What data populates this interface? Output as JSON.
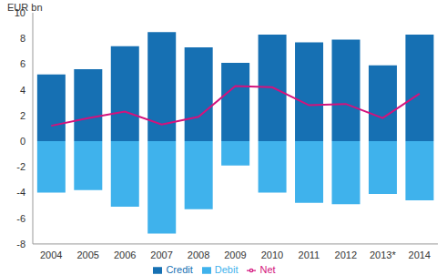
{
  "chart_data": {
    "type": "bar",
    "y_label": "EUR bn",
    "categories": [
      "2004",
      "2005",
      "2006",
      "2007",
      "2008",
      "2009",
      "2010",
      "2011",
      "2012",
      "2013*",
      "2014"
    ],
    "series": [
      {
        "name": "Credit",
        "type": "bar",
        "color": "#1670b3",
        "values": [
          5.2,
          5.6,
          7.4,
          8.5,
          7.3,
          6.1,
          8.3,
          7.7,
          7.9,
          5.9,
          8.3
        ]
      },
      {
        "name": "Debit",
        "type": "bar",
        "color": "#3fb2ec",
        "values": [
          -4.0,
          -3.8,
          -5.1,
          -7.2,
          -5.3,
          -1.9,
          -4.0,
          -4.8,
          -4.9,
          -4.1,
          -4.6
        ]
      },
      {
        "name": "Net",
        "type": "line",
        "color": "#d4127c",
        "values": [
          1.2,
          1.8,
          2.3,
          1.3,
          1.9,
          4.3,
          4.2,
          2.8,
          2.9,
          1.8,
          3.7
        ]
      }
    ],
    "stacked": true,
    "ylim": [
      -8,
      10
    ],
    "yticks": [
      -8,
      -6,
      -4,
      -2,
      0,
      2,
      4,
      6,
      8,
      10
    ],
    "grid": false,
    "legend": "bottom"
  }
}
